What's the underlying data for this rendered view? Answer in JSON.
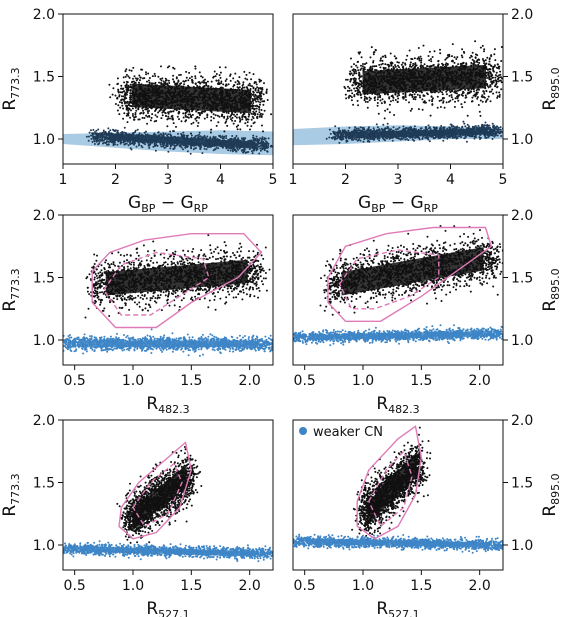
{
  "chart_data": [
    {
      "type": "scatter",
      "panel": "top-left",
      "xlabel": {
        "main": "G",
        "sub1": "BP",
        "mid": " − G",
        "sub2": "RP"
      },
      "ylabel": {
        "main": "R",
        "sub": "773.3"
      },
      "ylabel_side": "left",
      "xlim": [
        1,
        5
      ],
      "ylim": [
        0.8,
        2.0
      ],
      "xticks": [
        "1",
        "2",
        "3",
        "4",
        "5"
      ],
      "yticks": [
        "1.0",
        "1.5",
        "2.0"
      ],
      "xtick_values": [
        1,
        2,
        3,
        4,
        5
      ],
      "ytick_values": [
        1.0,
        1.5,
        2.0
      ],
      "band": {
        "x": [
          1,
          2,
          3,
          4,
          5
        ],
        "upper": [
          1.04,
          1.05,
          1.06,
          1.07,
          1.06
        ],
        "lower": [
          0.96,
          0.93,
          0.9,
          0.88,
          0.87
        ],
        "color": "#a9cbe3"
      },
      "series": [
        {
          "color": "#111111",
          "cloud": {
            "x": [
              2.1,
              4.8
            ],
            "yc": [
              1.35,
              1.3
            ],
            "spread": 0.17
          },
          "core": {
            "x": [
              2.2,
              4.6
            ],
            "yc": [
              1.38,
              1.3
            ],
            "rx": 0.1,
            "ry": 0.09
          }
        },
        {
          "color": "#1f3b57",
          "cloud": {
            "x": [
              1.6,
              4.9
            ],
            "yc": [
              1.02,
              0.95
            ],
            "spread": 0.05
          }
        }
      ]
    },
    {
      "type": "scatter",
      "panel": "top-right",
      "xlabel": {
        "main": "G",
        "sub1": "BP",
        "mid": " − G",
        "sub2": "RP"
      },
      "ylabel": {
        "main": "R",
        "sub": "895.0"
      },
      "ylabel_side": "right",
      "xlim": [
        1,
        5
      ],
      "ylim": [
        0.8,
        2.0
      ],
      "xticks": [
        "1",
        "2",
        "3",
        "4",
        "5"
      ],
      "yticks": [
        "1.0",
        "1.5",
        "2.0"
      ],
      "xtick_values": [
        1,
        2,
        3,
        4,
        5
      ],
      "ytick_values": [
        1.0,
        1.5,
        2.0
      ],
      "band": {
        "x": [
          1,
          2,
          3,
          4,
          5
        ],
        "upper": [
          1.08,
          1.1,
          1.11,
          1.1,
          1.08
        ],
        "lower": [
          0.95,
          0.96,
          0.98,
          1.0,
          1.0
        ],
        "color": "#a9cbe3"
      },
      "series": [
        {
          "color": "#111111",
          "cloud": {
            "x": [
              2.1,
              4.9
            ],
            "yc": [
              1.45,
              1.5
            ],
            "spread": 0.17
          }
        },
        {
          "color": "#1f3b57",
          "cloud": {
            "x": [
              1.8,
              4.9
            ],
            "yc": [
              1.03,
              1.06
            ],
            "spread": 0.045
          }
        }
      ]
    },
    {
      "type": "scatter",
      "panel": "mid-left",
      "xlabel": {
        "main": "R",
        "sub": "482.3"
      },
      "ylabel": {
        "main": "R",
        "sub": "773.3"
      },
      "ylabel_side": "left",
      "xlim": [
        0.4,
        2.2
      ],
      "ylim": [
        0.8,
        2.0
      ],
      "xticks": [
        "0.5",
        "1.0",
        "1.5",
        "2.0"
      ],
      "yticks": [
        "1.0",
        "1.5",
        "2.0"
      ],
      "xtick_values": [
        0.5,
        1.0,
        1.5,
        2.0
      ],
      "ytick_values": [
        1.0,
        1.5,
        2.0
      ],
      "contours": {
        "color": "#e07bb8",
        "outer": [
          [
            0.65,
            1.55
          ],
          [
            0.8,
            1.7
          ],
          [
            1.1,
            1.8
          ],
          [
            1.5,
            1.85
          ],
          [
            1.95,
            1.85
          ],
          [
            2.1,
            1.7
          ],
          [
            1.9,
            1.5
          ],
          [
            1.5,
            1.3
          ],
          [
            1.2,
            1.1
          ],
          [
            0.85,
            1.1
          ],
          [
            0.65,
            1.3
          ]
        ],
        "inner": [
          [
            0.75,
            1.4
          ],
          [
            0.9,
            1.6
          ],
          [
            1.2,
            1.7
          ],
          [
            1.6,
            1.65
          ],
          [
            1.65,
            1.5
          ],
          [
            1.4,
            1.35
          ],
          [
            1.15,
            1.2
          ],
          [
            0.9,
            1.2
          ]
        ]
      },
      "series": [
        {
          "color": "#111111",
          "cloud": {
            "x": [
              0.65,
              2.1
            ],
            "yc": [
              1.45,
              1.55
            ],
            "spread": 0.17
          }
        },
        {
          "color": "#3d85c6",
          "cloud": {
            "x": [
              0.4,
              2.2
            ],
            "yc": [
              0.97,
              0.97
            ],
            "spread": 0.05
          }
        }
      ]
    },
    {
      "type": "scatter",
      "panel": "mid-right",
      "xlabel": {
        "main": "R",
        "sub": "482.3"
      },
      "ylabel": {
        "main": "R",
        "sub": "895.0"
      },
      "ylabel_side": "right",
      "xlim": [
        0.4,
        2.2
      ],
      "ylim": [
        0.8,
        2.0
      ],
      "xticks": [
        "0.5",
        "1.0",
        "1.5",
        "2.0"
      ],
      "yticks": [
        "1.0",
        "1.5",
        "2.0"
      ],
      "xtick_values": [
        0.5,
        1.0,
        1.5,
        2.0
      ],
      "ytick_values": [
        1.0,
        1.5,
        2.0
      ],
      "contours": {
        "color": "#e07bb8",
        "outer": [
          [
            0.7,
            1.5
          ],
          [
            0.85,
            1.75
          ],
          [
            1.2,
            1.85
          ],
          [
            1.6,
            1.9
          ],
          [
            2.05,
            1.9
          ],
          [
            2.1,
            1.75
          ],
          [
            1.8,
            1.55
          ],
          [
            1.5,
            1.35
          ],
          [
            1.15,
            1.15
          ],
          [
            0.85,
            1.15
          ],
          [
            0.7,
            1.3
          ]
        ],
        "inner": [
          [
            0.8,
            1.45
          ],
          [
            0.95,
            1.65
          ],
          [
            1.3,
            1.72
          ],
          [
            1.65,
            1.68
          ],
          [
            1.65,
            1.5
          ],
          [
            1.4,
            1.35
          ],
          [
            1.1,
            1.25
          ],
          [
            0.9,
            1.25
          ]
        ]
      },
      "series": [
        {
          "color": "#111111",
          "cloud": {
            "x": [
              0.7,
              2.15
            ],
            "yc": [
              1.45,
              1.65
            ],
            "spread": 0.17
          }
        },
        {
          "color": "#3d85c6",
          "cloud": {
            "x": [
              0.4,
              2.2
            ],
            "yc": [
              1.02,
              1.05
            ],
            "spread": 0.04
          }
        }
      ]
    },
    {
      "type": "scatter",
      "panel": "bottom-left",
      "xlabel": {
        "main": "R",
        "sub": "527.1"
      },
      "ylabel": {
        "main": "R",
        "sub": "773.3"
      },
      "ylabel_side": "left",
      "xlim": [
        0.4,
        2.2
      ],
      "ylim": [
        0.8,
        2.0
      ],
      "xticks": [
        "0.5",
        "1.0",
        "1.5",
        "2.0"
      ],
      "yticks": [
        "1.0",
        "1.5",
        "2.0"
      ],
      "xtick_values": [
        0.5,
        1.0,
        1.5,
        2.0
      ],
      "ytick_values": [
        1.0,
        1.5,
        2.0
      ],
      "contours": {
        "color": "#e07bb8",
        "outer": [
          [
            0.9,
            1.3
          ],
          [
            1.05,
            1.5
          ],
          [
            1.3,
            1.7
          ],
          [
            1.45,
            1.82
          ],
          [
            1.5,
            1.6
          ],
          [
            1.4,
            1.3
          ],
          [
            1.2,
            1.1
          ],
          [
            1.0,
            1.05
          ],
          [
            0.88,
            1.15
          ]
        ],
        "inner": [
          [
            1.0,
            1.3
          ],
          [
            1.15,
            1.5
          ],
          [
            1.35,
            1.65
          ],
          [
            1.42,
            1.5
          ],
          [
            1.3,
            1.25
          ],
          [
            1.1,
            1.15
          ]
        ]
      },
      "series": [
        {
          "color": "#111111",
          "cloud": {
            "x": [
              0.95,
              1.5
            ],
            "yc": [
              1.2,
              1.55
            ],
            "spread": 0.16
          }
        },
        {
          "color": "#3d85c6",
          "cloud": {
            "x": [
              0.4,
              2.2
            ],
            "yc": [
              0.97,
              0.93
            ],
            "spread": 0.04
          }
        }
      ]
    },
    {
      "type": "scatter",
      "panel": "bottom-right",
      "xlabel": {
        "main": "R",
        "sub": "527.1"
      },
      "ylabel": {
        "main": "R",
        "sub": "895.0"
      },
      "ylabel_side": "right",
      "xlim": [
        0.4,
        2.2
      ],
      "ylim": [
        0.8,
        2.0
      ],
      "xticks": [
        "0.5",
        "1.0",
        "1.5",
        "2.0"
      ],
      "yticks": [
        "1.0",
        "1.5",
        "2.0"
      ],
      "xtick_values": [
        0.5,
        1.0,
        1.5,
        2.0
      ],
      "ytick_values": [
        1.0,
        1.5,
        2.0
      ],
      "legend": {
        "label": "weaker CN",
        "color": "#3d85c6",
        "placement": "top-left"
      },
      "contours": {
        "color": "#e07bb8",
        "outer": [
          [
            0.95,
            1.35
          ],
          [
            1.05,
            1.6
          ],
          [
            1.3,
            1.85
          ],
          [
            1.45,
            1.95
          ],
          [
            1.5,
            1.7
          ],
          [
            1.45,
            1.4
          ],
          [
            1.3,
            1.15
          ],
          [
            1.1,
            1.05
          ],
          [
            0.95,
            1.15
          ]
        ],
        "inner": [
          [
            1.05,
            1.35
          ],
          [
            1.2,
            1.6
          ],
          [
            1.35,
            1.75
          ],
          [
            1.42,
            1.55
          ],
          [
            1.35,
            1.3
          ],
          [
            1.15,
            1.15
          ]
        ]
      },
      "series": [
        {
          "color": "#111111",
          "cloud": {
            "x": [
              1.0,
              1.5
            ],
            "yc": [
              1.25,
              1.65
            ],
            "spread": 0.17
          }
        },
        {
          "color": "#3d85c6",
          "cloud": {
            "x": [
              0.4,
              2.2
            ],
            "yc": [
              1.03,
              1.0
            ],
            "spread": 0.04
          }
        }
      ]
    }
  ]
}
